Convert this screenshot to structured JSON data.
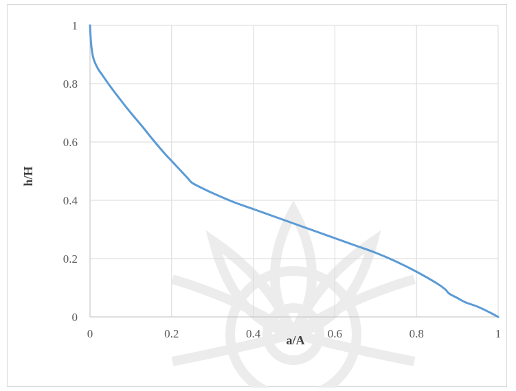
{
  "chart_data": {
    "type": "line",
    "xlabel": "a/A",
    "ylabel": "h/H",
    "xlim": [
      0,
      1
    ],
    "ylim": [
      0,
      1
    ],
    "x_ticks": [
      "0",
      "0.2",
      "0.4",
      "0.6",
      "0.8",
      "1"
    ],
    "y_ticks": [
      "0",
      "0.2",
      "0.4",
      "0.6",
      "0.8",
      "1"
    ],
    "grid": true,
    "legend": "none",
    "series": [
      {
        "color": "#5b9bd5",
        "x": [
          0,
          0.002,
          0.005,
          0.01,
          0.02,
          0.03,
          0.05,
          0.08,
          0.1,
          0.13,
          0.15,
          0.18,
          0.2,
          0.22,
          0.24,
          0.25,
          0.27,
          0.3,
          0.35,
          0.4,
          0.45,
          0.5,
          0.55,
          0.6,
          0.65,
          0.7,
          0.75,
          0.8,
          0.85,
          0.87,
          0.88,
          0.9,
          0.92,
          0.95,
          0.98,
          1.0
        ],
        "y": [
          1.0,
          0.95,
          0.91,
          0.88,
          0.85,
          0.83,
          0.79,
          0.735,
          0.7,
          0.65,
          0.615,
          0.565,
          0.535,
          0.505,
          0.475,
          0.46,
          0.445,
          0.425,
          0.395,
          0.37,
          0.345,
          0.32,
          0.295,
          0.27,
          0.245,
          0.22,
          0.19,
          0.155,
          0.115,
          0.095,
          0.08,
          0.065,
          0.05,
          0.035,
          0.015,
          0.0
        ]
      }
    ]
  }
}
